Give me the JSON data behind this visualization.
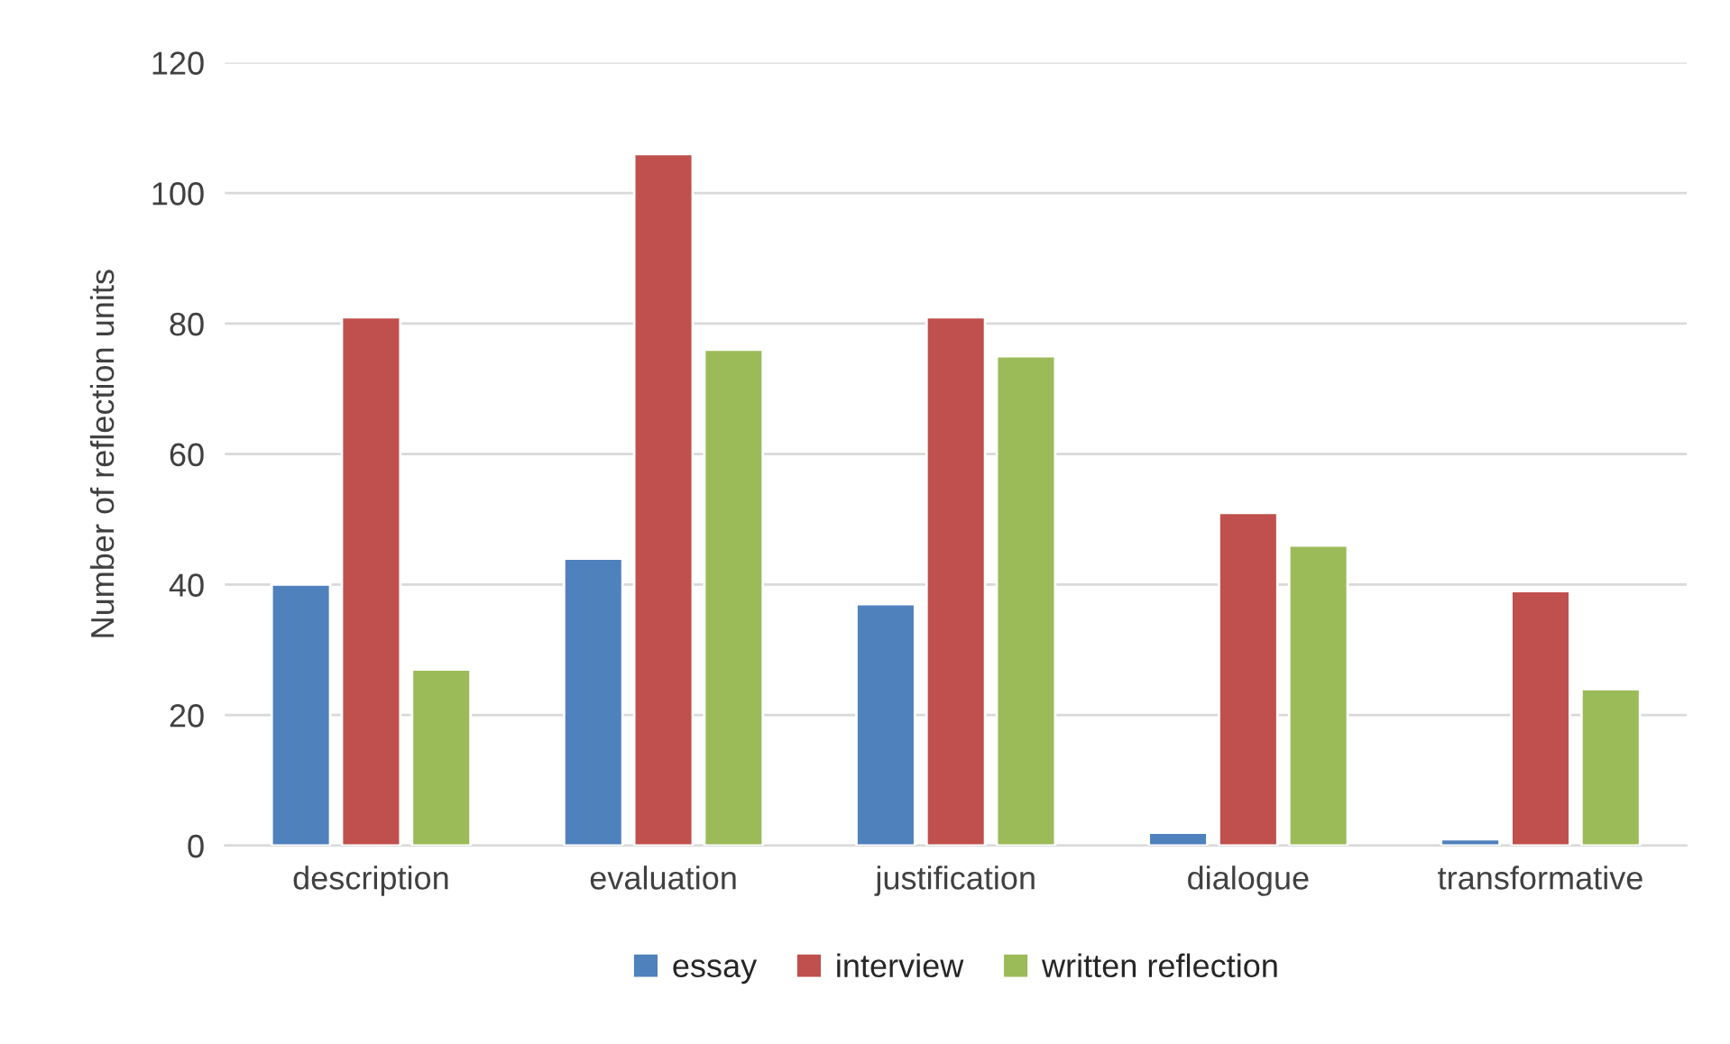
{
  "chart_data": {
    "type": "bar",
    "ylabel": "Number of reflection units",
    "categories": [
      "description",
      "evaluation",
      "justification",
      "dialogue",
      "transformative"
    ],
    "series": [
      {
        "name": "essay",
        "color": "#4f81bd",
        "values": [
          40,
          44,
          37,
          2,
          1
        ]
      },
      {
        "name": "interview",
        "color": "#c0504d",
        "values": [
          81,
          106,
          81,
          51,
          39
        ]
      },
      {
        "name": "written reflection",
        "color": "#9bbb59",
        "values": [
          27,
          76,
          75,
          46,
          24
        ]
      }
    ],
    "ylim": [
      0,
      120
    ],
    "yticks": [
      0,
      20,
      40,
      60,
      80,
      100,
      120
    ],
    "grid": "y",
    "legend": "bottom"
  }
}
